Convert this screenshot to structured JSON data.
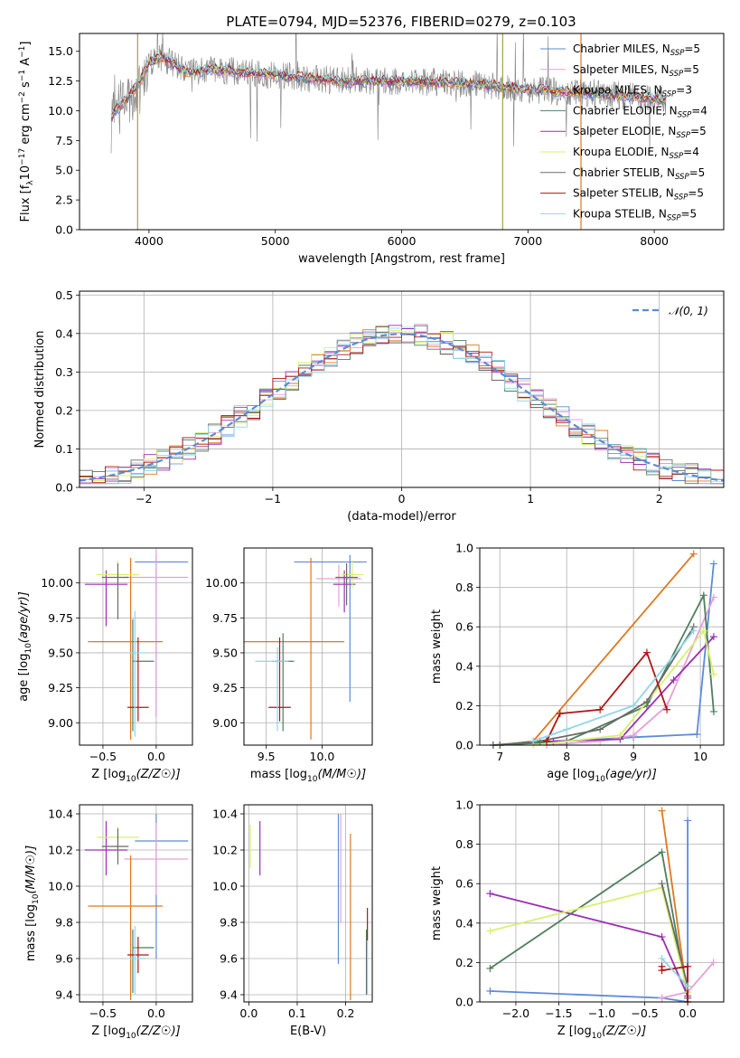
{
  "figure_title": "PLATE=0794, MJD=52376, FIBERID=0279, z=0.103",
  "colors": {
    "Chabrier MILES": "#5b8bd9",
    "Salpeter MILES": "#e6a0d8",
    "Kroupa MILES": "#e0781e",
    "Chabrier ELODIE": "#4e7f5c",
    "Salpeter ELODIE": "#9b2fb3",
    "Kroupa ELODIE": "#d8f070",
    "Chabrier STELIB": "#6a6a6a",
    "Salpeter STELIB": "#b01515",
    "Kroupa STELIB": "#8fd6e6",
    "normal": "#5b8bd9",
    "data": "#808080"
  },
  "chart_data": [
    {
      "id": "spectrum",
      "type": "line",
      "title": "PLATE=0794, MJD=52376, FIBERID=0279, z=0.103",
      "xlabel": "wavelength [Angstrom, rest frame]",
      "ylabel": "Flux [f_λ10^-17 erg cm^-2 s^-1 A^-1]",
      "xlim": [
        3450,
        8550
      ],
      "ylim": [
        0,
        16.5
      ],
      "xticks": [
        4000,
        5000,
        6000,
        7000,
        8000
      ],
      "yticks": [
        0.0,
        2.5,
        5.0,
        7.5,
        10.0,
        12.5,
        15.0
      ],
      "ytick_labels": [
        "0.0",
        "2.5",
        "5.0",
        "7.5",
        "10.0",
        "12.5",
        "15.0"
      ],
      "legend": [
        "Chabrier MILES, N_SSP=5",
        "Salpeter MILES, N_SSP=5",
        "Kroupa MILES, N_SSP=3",
        "Chabrier ELODIE, N_SSP=4",
        "Salpeter ELODIE, N_SSP=5",
        "Kroupa ELODIE, N_SSP=4",
        "Chabrier STELIB, N_SSP=5",
        "Salpeter STELIB, N_SSP=5",
        "Kroupa STELIB, N_SSP=5"
      ],
      "legend_placement": "upper-right",
      "continuum_points": [
        [
          3700,
          9.5
        ],
        [
          3900,
          12.0
        ],
        [
          4000,
          14.0
        ],
        [
          4100,
          14.5
        ],
        [
          4300,
          13.2
        ],
        [
          4500,
          13.5
        ],
        [
          5000,
          13.0
        ],
        [
          5500,
          12.5
        ],
        [
          6000,
          12.5
        ],
        [
          6500,
          12.3
        ],
        [
          7000,
          11.8
        ],
        [
          7500,
          11.5
        ],
        [
          8000,
          11.0
        ],
        [
          8100,
          10.8
        ]
      ],
      "vertical_lines": [
        {
          "x": 3910,
          "color": "#a8a04a"
        },
        {
          "x": 6800,
          "color": "#a8a04a"
        },
        {
          "x": 7420,
          "color": "#e0781e"
        }
      ]
    },
    {
      "id": "residuals",
      "type": "line",
      "xlabel": "(data-model)/error",
      "ylabel": "Normed distribution",
      "xlim": [
        -2.5,
        2.5
      ],
      "ylim": [
        0,
        0.51
      ],
      "xticks": [
        -2,
        -1,
        0,
        1,
        2
      ],
      "xtick_labels": [
        "−2",
        "−1",
        "0",
        "1",
        "2"
      ],
      "yticks": [
        0.0,
        0.1,
        0.2,
        0.3,
        0.4,
        0.5
      ],
      "ytick_labels": [
        "0.0",
        "0.1",
        "0.2",
        "0.3",
        "0.4",
        "0.5"
      ],
      "grid": true,
      "legend": [
        "𝒩(0, 1)"
      ],
      "legend_placement": "upper-right"
    },
    {
      "id": "age_vs_Z",
      "type": "scatter",
      "xlabel": "Z [log10(Z/Z☉)]",
      "ylabel": "age  [log10(age/yr)]",
      "xlim": [
        -0.72,
        0.34
      ],
      "ylim": [
        8.84,
        10.25
      ],
      "xticks": [
        -0.5,
        0.0
      ],
      "xtick_labels": [
        "−0.5",
        "0.0"
      ],
      "yticks": [
        9.0,
        9.25,
        9.5,
        9.75,
        10.0
      ],
      "ytick_labels": [
        "9.00",
        "9.25",
        "9.50",
        "9.75",
        "10.00"
      ],
      "grid": true,
      "points": [
        {
          "model": "Chabrier MILES",
          "x": 0.0,
          "xerr": [
            0.2,
            0.3
          ],
          "y": 10.15,
          "yerr": [
            1.1,
            0.05
          ]
        },
        {
          "model": "Salpeter MILES",
          "x": 0.0,
          "xerr": [
            0.3,
            0.3
          ],
          "y": 10.04,
          "yerr": [
            1.0,
            0.2
          ]
        },
        {
          "model": "Kroupa MILES",
          "x": -0.24,
          "xerr": [
            0.4,
            0.3
          ],
          "y": 9.58,
          "yerr": [
            0.7,
            0.6
          ]
        },
        {
          "model": "Chabrier ELODIE",
          "x": -0.22,
          "xerr": [
            0.0,
            0.2
          ],
          "y": 9.44,
          "yerr": [
            0.5,
            0.3
          ]
        },
        {
          "model": "Salpeter ELODIE",
          "x": -0.47,
          "xerr": [
            0.2,
            0.2
          ],
          "y": 9.99,
          "yerr": [
            0.3,
            0.1
          ]
        },
        {
          "model": "Kroupa ELODIE",
          "x": -0.36,
          "xerr": [
            0.2,
            0.2
          ],
          "y": 10.06,
          "yerr": [
            0.15,
            0.1
          ]
        },
        {
          "model": "Chabrier STELIB",
          "x": -0.36,
          "xerr": [
            0.15,
            0.1
          ],
          "y": 10.04,
          "yerr": [
            0.3,
            0.1
          ]
        },
        {
          "model": "Salpeter STELIB",
          "x": -0.17,
          "xerr": [
            0.1,
            0.1
          ],
          "y": 9.11,
          "yerr": [
            0.1,
            0.5
          ]
        },
        {
          "model": "Kroupa STELIB",
          "x": -0.2,
          "xerr": [
            0.05,
            0.1
          ],
          "y": 9.5,
          "yerr": [
            0.6,
            0.3
          ]
        }
      ]
    },
    {
      "id": "age_vs_mass",
      "type": "scatter",
      "xlabel": "mass [log10(M/M☉)]",
      "xlim": [
        9.3,
        10.45
      ],
      "ylim": [
        8.84,
        10.25
      ],
      "xticks": [
        9.5,
        10.0
      ],
      "xtick_labels": [
        "9.5",
        "10.0"
      ],
      "yticks": [
        9.0,
        9.25,
        9.5,
        9.75,
        10.0
      ],
      "ytick_labels": [
        "9.00",
        "9.25",
        "9.50",
        "9.75",
        "10.00"
      ],
      "grid": true,
      "points": [
        {
          "model": "Chabrier MILES",
          "x": 10.25,
          "xerr": [
            0.5,
            0.15
          ],
          "y": 10.15,
          "yerr": [
            1.0,
            0.05
          ]
        },
        {
          "model": "Salpeter MILES",
          "x": 10.15,
          "xerr": [
            0.2,
            0.2
          ],
          "y": 10.03,
          "yerr": [
            0.2,
            0.1
          ]
        },
        {
          "model": "Kroupa MILES",
          "x": 9.9,
          "xerr": [
            0.6,
            0.3
          ],
          "y": 9.58,
          "yerr": [
            0.7,
            0.6
          ]
        },
        {
          "model": "Chabrier ELODIE",
          "x": 9.65,
          "xerr": [
            0.1,
            0.1
          ],
          "y": 9.44,
          "yerr": [
            0.5,
            0.2
          ]
        },
        {
          "model": "Salpeter ELODIE",
          "x": 10.2,
          "xerr": [
            0.1,
            0.1
          ],
          "y": 9.99,
          "yerr": [
            0.2,
            0.1
          ]
        },
        {
          "model": "Kroupa ELODIE",
          "x": 10.27,
          "xerr": [
            0.1,
            0.1
          ],
          "y": 10.06,
          "yerr": [
            0.1,
            0.1
          ]
        },
        {
          "model": "Chabrier STELIB",
          "x": 10.22,
          "xerr": [
            0.1,
            0.1
          ],
          "y": 10.04,
          "yerr": [
            0.2,
            0.1
          ]
        },
        {
          "model": "Salpeter STELIB",
          "x": 9.62,
          "xerr": [
            0.1,
            0.1
          ],
          "y": 9.11,
          "yerr": [
            0.1,
            0.5
          ]
        },
        {
          "model": "Kroupa STELIB",
          "x": 9.6,
          "xerr": [
            0.2,
            0.1
          ],
          "y": 9.44,
          "yerr": [
            0.5,
            0.1
          ]
        }
      ]
    },
    {
      "id": "massweight_vs_age",
      "type": "line",
      "xlabel": "age  [log10(age/yr)]",
      "ylabel": "mass weight",
      "xlim": [
        6.7,
        10.35
      ],
      "ylim": [
        0,
        1.0
      ],
      "xticks": [
        7,
        8,
        9,
        10
      ],
      "yticks": [
        0.0,
        0.2,
        0.4,
        0.6,
        0.8,
        1.0
      ],
      "ytick_labels": [
        "0.0",
        "0.2",
        "0.4",
        "0.6",
        "0.8",
        "1.0"
      ],
      "grid": true,
      "series": [
        {
          "model": "Chabrier MILES",
          "x": [
            6.9,
            8.0,
            9.0,
            9.95,
            10.2
          ],
          "y": [
            0.0,
            0.02,
            0.04,
            0.055,
            0.92
          ]
        },
        {
          "model": "Salpeter MILES",
          "x": [
            7.7,
            8.5,
            9.0,
            9.5,
            10.2
          ],
          "y": [
            0.0,
            0.02,
            0.05,
            0.2,
            0.75
          ]
        },
        {
          "model": "Kroupa MILES",
          "x": [
            7.0,
            7.5,
            9.9
          ],
          "y": [
            0.0,
            0.02,
            0.97
          ]
        },
        {
          "model": "Chabrier ELODIE",
          "x": [
            7.0,
            8.0,
            9.2,
            10.05,
            10.2
          ],
          "y": [
            0.0,
            0.02,
            0.2,
            0.76,
            0.17
          ]
        },
        {
          "model": "Salpeter ELODIE",
          "x": [
            7.8,
            8.8,
            9.6,
            10.2
          ],
          "y": [
            0.02,
            0.03,
            0.33,
            0.55
          ]
        },
        {
          "model": "Kroupa ELODIE",
          "x": [
            7.5,
            8.8,
            10.05,
            10.2
          ],
          "y": [
            0.0,
            0.05,
            0.58,
            0.36
          ]
        },
        {
          "model": "Chabrier STELIB",
          "x": [
            6.9,
            7.6,
            8.5,
            9.2,
            9.9
          ],
          "y": [
            0.0,
            0.02,
            0.08,
            0.22,
            0.6
          ]
        },
        {
          "model": "Salpeter STELIB",
          "x": [
            7.7,
            7.9,
            8.5,
            9.2,
            9.5
          ],
          "y": [
            0.02,
            0.16,
            0.18,
            0.47,
            0.18
          ]
        },
        {
          "model": "Kroupa STELIB",
          "x": [
            7.5,
            8.0,
            9.0,
            9.9
          ],
          "y": [
            0.02,
            0.08,
            0.2,
            0.58
          ]
        }
      ]
    },
    {
      "id": "mass_vs_Z",
      "type": "scatter",
      "xlabel": "Z [log10(Z/Z☉)]",
      "ylabel": "mass [log10(M/M☉)]",
      "xlim": [
        -0.72,
        0.34
      ],
      "ylim": [
        9.36,
        10.45
      ],
      "xticks": [
        -0.5,
        0.0
      ],
      "xtick_labels": [
        "−0.5",
        "0.0"
      ],
      "yticks": [
        9.4,
        9.6,
        9.8,
        10.0,
        10.2,
        10.4
      ],
      "ytick_labels": [
        "9.4",
        "9.6",
        "9.8",
        "10.0",
        "10.2",
        "10.4"
      ],
      "grid": true,
      "points": [
        {
          "model": "Chabrier MILES",
          "x": 0.0,
          "xerr": [
            0.2,
            0.3
          ],
          "y": 10.25,
          "yerr": [
            0.65,
            0.15
          ]
        },
        {
          "model": "Salpeter MILES",
          "x": 0.0,
          "xerr": [
            0.3,
            0.3
          ],
          "y": 10.15,
          "yerr": [
            0.2,
            0.2
          ]
        },
        {
          "model": "Kroupa MILES",
          "x": -0.24,
          "xerr": [
            0.4,
            0.3
          ],
          "y": 9.89,
          "yerr": [
            0.52,
            0.28
          ]
        },
        {
          "model": "Chabrier ELODIE",
          "x": -0.22,
          "xerr": [
            0.0,
            0.2
          ],
          "y": 9.66,
          "yerr": [
            0.25,
            0.1
          ]
        },
        {
          "model": "Salpeter ELODIE",
          "x": -0.47,
          "xerr": [
            0.2,
            0.2
          ],
          "y": 10.2,
          "yerr": [
            0.14,
            0.16
          ]
        },
        {
          "model": "Kroupa ELODIE",
          "x": -0.36,
          "xerr": [
            0.2,
            0.2
          ],
          "y": 10.27,
          "yerr": [
            0.1,
            0.06
          ]
        },
        {
          "model": "Chabrier STELIB",
          "x": -0.36,
          "xerr": [
            0.15,
            0.1
          ],
          "y": 10.22,
          "yerr": [
            0.1,
            0.1
          ]
        },
        {
          "model": "Salpeter STELIB",
          "x": -0.17,
          "xerr": [
            0.1,
            0.1
          ],
          "y": 9.62,
          "yerr": [
            0.1,
            0.1
          ]
        },
        {
          "model": "Kroupa STELIB",
          "x": -0.2,
          "xerr": [
            0.05,
            0.1
          ],
          "y": 9.6,
          "yerr": [
            0.2,
            0.18
          ]
        }
      ]
    },
    {
      "id": "mass_vs_EBV",
      "type": "scatter",
      "xlabel": "E(B-V)",
      "xlim": [
        -0.01,
        0.255
      ],
      "ylim": [
        9.36,
        10.45
      ],
      "xticks": [
        0.0,
        0.1,
        0.2
      ],
      "xtick_labels": [
        "0.0",
        "0.1",
        "0.2"
      ],
      "yticks": [
        9.4,
        9.6,
        9.8,
        10.0,
        10.2,
        10.4
      ],
      "ytick_labels": [
        "9.4",
        "9.6",
        "9.8",
        "10.0",
        "10.2",
        "10.4"
      ],
      "grid": true,
      "points": [
        {
          "model": "Chabrier MILES",
          "x": 0.185,
          "y": 10.25,
          "yerr": [
            0.68,
            0.15
          ]
        },
        {
          "model": "Salpeter MILES",
          "x": 0.19,
          "y": 10.15,
          "yerr": [
            0.35,
            0.25
          ]
        },
        {
          "model": "Kroupa MILES",
          "x": 0.21,
          "y": 9.89,
          "yerr": [
            0.52,
            0.4
          ]
        },
        {
          "model": "Chabrier ELODIE",
          "x": 0.243,
          "y": 9.66,
          "yerr": [
            0.25,
            0.1
          ]
        },
        {
          "model": "Salpeter ELODIE",
          "x": 0.023,
          "y": 10.2,
          "yerr": [
            0.14,
            0.16
          ]
        },
        {
          "model": "Kroupa ELODIE",
          "x": 0.003,
          "y": 10.2,
          "yerr": [
            0.1,
            0.14
          ]
        },
        {
          "model": "Chabrier STELIB",
          "x": 0.243,
          "y": 9.6,
          "yerr": [
            0.2,
            0.1
          ]
        },
        {
          "model": "Salpeter STELIB",
          "x": 0.245,
          "y": 9.8,
          "yerr": [
            0.1,
            0.08
          ]
        },
        {
          "model": "Kroupa STELIB",
          "x": 0.245,
          "y": 9.6,
          "yerr": [
            0.2,
            0.1
          ]
        }
      ]
    },
    {
      "id": "massweight_vs_Z",
      "type": "line",
      "xlabel": "Z [log10(Z/Z☉)]",
      "ylabel": "mass weight",
      "xlim": [
        -2.42,
        0.42
      ],
      "ylim": [
        0,
        1.0
      ],
      "xticks": [
        -2.0,
        -1.5,
        -1.0,
        -0.5,
        0.0
      ],
      "xtick_labels": [
        "−2.0",
        "−1.5",
        "−1.0",
        "−0.5",
        "0.0"
      ],
      "yticks": [
        0.0,
        0.2,
        0.4,
        0.6,
        0.8,
        1.0
      ],
      "ytick_labels": [
        "0.0",
        "0.2",
        "0.4",
        "0.6",
        "0.8",
        "1.0"
      ],
      "grid": true,
      "series": [
        {
          "model": "Chabrier MILES",
          "x": [
            -2.3,
            -0.3,
            0.0,
            0.0
          ],
          "y": [
            0.055,
            0.02,
            0.0,
            0.92
          ]
        },
        {
          "model": "Salpeter MILES",
          "x": [
            -0.3,
            0.0,
            0.3
          ],
          "y": [
            0.02,
            0.05,
            0.2
          ]
        },
        {
          "model": "Kroupa MILES",
          "x": [
            -0.3,
            0.0
          ],
          "y": [
            0.97,
            0.02
          ]
        },
        {
          "model": "Chabrier ELODIE",
          "x": [
            -2.3,
            -0.3,
            0.0
          ],
          "y": [
            0.17,
            0.76,
            0.02
          ]
        },
        {
          "model": "Salpeter ELODIE",
          "x": [
            -2.3,
            -0.3,
            0.0
          ],
          "y": [
            0.55,
            0.33,
            0.03
          ]
        },
        {
          "model": "Kroupa ELODIE",
          "x": [
            -2.3,
            -0.3,
            0.0
          ],
          "y": [
            0.36,
            0.58,
            0.05
          ]
        },
        {
          "model": "Chabrier STELIB",
          "x": [
            -0.3,
            0.0
          ],
          "y": [
            0.6,
            0.08
          ]
        },
        {
          "model": "Salpeter STELIB",
          "x": [
            -0.3,
            -0.3,
            0.0,
            0.0
          ],
          "y": [
            0.18,
            0.16,
            0.18,
            0.0
          ]
        },
        {
          "model": "Kroupa STELIB",
          "x": [
            -0.3,
            0.0
          ],
          "y": [
            0.22,
            0.08
          ]
        }
      ]
    }
  ]
}
